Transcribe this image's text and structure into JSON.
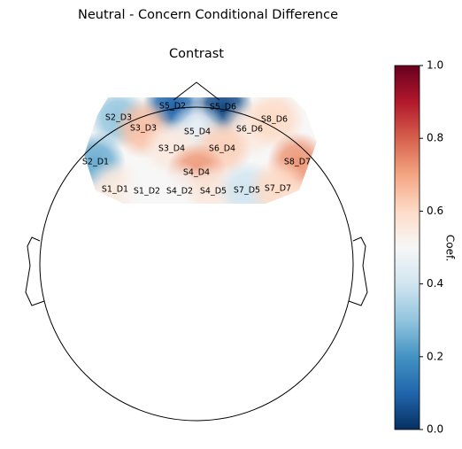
{
  "chart_data": {
    "type": "topomap",
    "title": "Neutral - Concern Conditional Difference",
    "subtitle": "Contrast",
    "colormap": "RdBu_r",
    "clim": [
      0,
      1
    ],
    "colorbar_label": "Coef.",
    "colorbar_ticks": [
      {
        "value": 0,
        "label": "0.0"
      },
      0.2,
      0.4,
      0.6,
      0.8,
      {
        "value": 1,
        "label": "1.0"
      }
    ],
    "channels": [
      "S5_D2",
      "S5_D6",
      "S2_D3",
      "S3_D3",
      "S5_D4",
      "S6_D6",
      "S8_D6",
      "S3_D4",
      "S6_D4",
      "S2_D1",
      "S4_D4",
      "S8_D7",
      "S1_D1",
      "S1_D2",
      "S4_D2",
      "S4_D5",
      "S7_D5",
      "S7_D7"
    ],
    "values": [
      0.1,
      0.05,
      0.3,
      0.65,
      0.45,
      0.55,
      0.6,
      0.55,
      0.62,
      0.25,
      0.72,
      0.72,
      0.55,
      0.5,
      0.5,
      0.55,
      0.4,
      0.6
    ]
  }
}
